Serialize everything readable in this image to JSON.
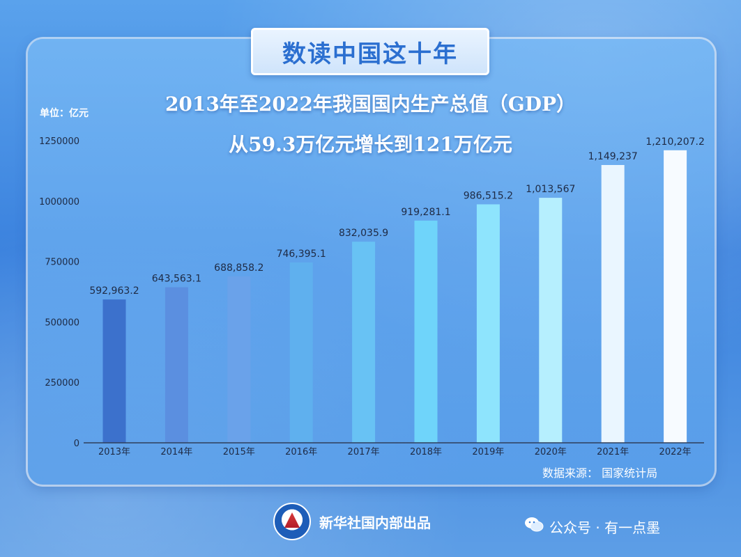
{
  "header": {
    "tag": "数读中国这十年",
    "title_line1": "2013年至2022年我国国内生产总值（GDP）",
    "title_line2": "从59.3万亿元增长到121万亿元",
    "unit": "单位：亿元"
  },
  "footer": {
    "source": "数据来源：  国家统计局",
    "producer": "新华社国内部出品",
    "watermark": "公众号 · 有一点墨"
  },
  "colors": {
    "bars": [
      "#3c71cc",
      "#5b8fe0",
      "#6aa2ea",
      "#5fb0ee",
      "#68c2f4",
      "#6fd4fa",
      "#8ee4fd",
      "#b6effe",
      "#eaf6ff",
      "#f7fbff"
    ],
    "axis": "#2f3e5a",
    "label": "#1e2a44"
  },
  "icons": {
    "logo": "xinhua-logo",
    "watermark_icon": "wechat-icon"
  },
  "chart_data": {
    "type": "bar",
    "title": "2013年至2022年我国国内生产总值（GDP）",
    "subtitle": "从59.3万亿元增长到121万亿元",
    "ylabel": "单位：亿元",
    "xlabel": "",
    "categories": [
      "2013年",
      "2014年",
      "2015年",
      "2016年",
      "2017年",
      "2018年",
      "2019年",
      "2020年",
      "2021年",
      "2022年"
    ],
    "values": [
      592963.2,
      643563.1,
      688858.2,
      746395.1,
      832035.9,
      919281.1,
      986515.2,
      1013567,
      1149237,
      1210207.2
    ],
    "value_labels": [
      "592,963.2",
      "643,563.1",
      "688,858.2",
      "746,395.1",
      "832,035.9",
      "919,281.1",
      "986,515.2",
      "1,013,567",
      "1,149,237",
      "1,210,207.2"
    ],
    "yticks": [
      0,
      250000,
      500000,
      750000,
      1000000,
      1250000
    ],
    "ytick_labels": [
      "0",
      "250000",
      "500000",
      "750000",
      "1000000",
      "1250000"
    ],
    "ylim": [
      0,
      1250000
    ],
    "grid": false,
    "legend": "none"
  }
}
